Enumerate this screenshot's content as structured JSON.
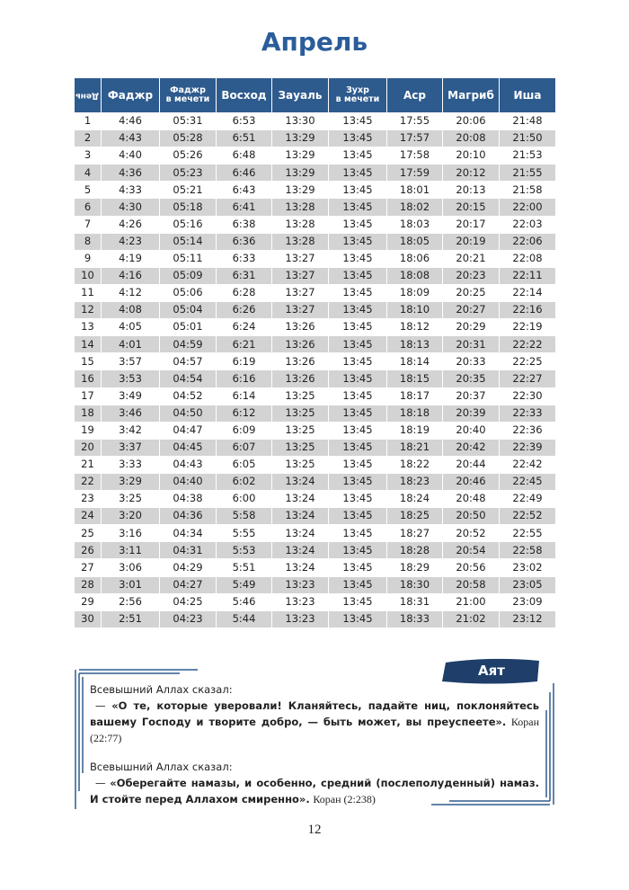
{
  "header": {
    "title": "Апрель"
  },
  "table": {
    "columns": [
      [
        "День"
      ],
      [
        "Фаджр"
      ],
      [
        "Фаджр",
        "в мечети"
      ],
      [
        "Восход"
      ],
      [
        "Зауаль"
      ],
      [
        "Зухр",
        "в мечети"
      ],
      [
        "Аср"
      ],
      [
        "Магриб"
      ],
      [
        "Иша"
      ]
    ],
    "rows": [
      [
        "1",
        "4:46",
        "05:31",
        "6:53",
        "13:30",
        "13:45",
        "17:55",
        "20:06",
        "21:48"
      ],
      [
        "2",
        "4:43",
        "05:28",
        "6:51",
        "13:29",
        "13:45",
        "17:57",
        "20:08",
        "21:50"
      ],
      [
        "3",
        "4:40",
        "05:26",
        "6:48",
        "13:29",
        "13:45",
        "17:58",
        "20:10",
        "21:53"
      ],
      [
        "4",
        "4:36",
        "05:23",
        "6:46",
        "13:29",
        "13:45",
        "17:59",
        "20:12",
        "21:55"
      ],
      [
        "5",
        "4:33",
        "05:21",
        "6:43",
        "13:29",
        "13:45",
        "18:01",
        "20:13",
        "21:58"
      ],
      [
        "6",
        "4:30",
        "05:18",
        "6:41",
        "13:28",
        "13:45",
        "18:02",
        "20:15",
        "22:00"
      ],
      [
        "7",
        "4:26",
        "05:16",
        "6:38",
        "13:28",
        "13:45",
        "18:03",
        "20:17",
        "22:03"
      ],
      [
        "8",
        "4:23",
        "05:14",
        "6:36",
        "13:28",
        "13:45",
        "18:05",
        "20:19",
        "22:06"
      ],
      [
        "9",
        "4:19",
        "05:11",
        "6:33",
        "13:27",
        "13:45",
        "18:06",
        "20:21",
        "22:08"
      ],
      [
        "10",
        "4:16",
        "05:09",
        "6:31",
        "13:27",
        "13:45",
        "18:08",
        "20:23",
        "22:11"
      ],
      [
        "11",
        "4:12",
        "05:06",
        "6:28",
        "13:27",
        "13:45",
        "18:09",
        "20:25",
        "22:14"
      ],
      [
        "12",
        "4:08",
        "05:04",
        "6:26",
        "13:27",
        "13:45",
        "18:10",
        "20:27",
        "22:16"
      ],
      [
        "13",
        "4:05",
        "05:01",
        "6:24",
        "13:26",
        "13:45",
        "18:12",
        "20:29",
        "22:19"
      ],
      [
        "14",
        "4:01",
        "04:59",
        "6:21",
        "13:26",
        "13:45",
        "18:13",
        "20:31",
        "22:22"
      ],
      [
        "15",
        "3:57",
        "04:57",
        "6:19",
        "13:26",
        "13:45",
        "18:14",
        "20:33",
        "22:25"
      ],
      [
        "16",
        "3:53",
        "04:54",
        "6:16",
        "13:26",
        "13:45",
        "18:15",
        "20:35",
        "22:27"
      ],
      [
        "17",
        "3:49",
        "04:52",
        "6:14",
        "13:25",
        "13:45",
        "18:17",
        "20:37",
        "22:30"
      ],
      [
        "18",
        "3:46",
        "04:50",
        "6:12",
        "13:25",
        "13:45",
        "18:18",
        "20:39",
        "22:33"
      ],
      [
        "19",
        "3:42",
        "04:47",
        "6:09",
        "13:25",
        "13:45",
        "18:19",
        "20:40",
        "22:36"
      ],
      [
        "20",
        "3:37",
        "04:45",
        "6:07",
        "13:25",
        "13:45",
        "18:21",
        "20:42",
        "22:39"
      ],
      [
        "21",
        "3:33",
        "04:43",
        "6:05",
        "13:25",
        "13:45",
        "18:22",
        "20:44",
        "22:42"
      ],
      [
        "22",
        "3:29",
        "04:40",
        "6:02",
        "13:24",
        "13:45",
        "18:23",
        "20:46",
        "22:45"
      ],
      [
        "23",
        "3:25",
        "04:38",
        "6:00",
        "13:24",
        "13:45",
        "18:24",
        "20:48",
        "22:49"
      ],
      [
        "24",
        "3:20",
        "04:36",
        "5:58",
        "13:24",
        "13:45",
        "18:25",
        "20:50",
        "22:52"
      ],
      [
        "25",
        "3:16",
        "04:34",
        "5:55",
        "13:24",
        "13:45",
        "18:27",
        "20:52",
        "22:55"
      ],
      [
        "26",
        "3:11",
        "04:31",
        "5:53",
        "13:24",
        "13:45",
        "18:28",
        "20:54",
        "22:58"
      ],
      [
        "27",
        "3:06",
        "04:29",
        "5:51",
        "13:24",
        "13:45",
        "18:29",
        "20:56",
        "23:02"
      ],
      [
        "28",
        "3:01",
        "04:27",
        "5:49",
        "13:23",
        "13:45",
        "18:30",
        "20:58",
        "23:05"
      ],
      [
        "29",
        "2:56",
        "04:25",
        "5:46",
        "13:23",
        "13:45",
        "18:31",
        "21:00",
        "23:09"
      ],
      [
        "30",
        "2:51",
        "04:23",
        "5:44",
        "13:23",
        "13:45",
        "18:33",
        "21:02",
        "23:12"
      ]
    ]
  },
  "ayat": {
    "badge": "Аят",
    "quotes": [
      {
        "intro": "Всевышний Аллах сказал:",
        "lead": "—",
        "text": "«О те, которые уверовали! Кланяйтесь, падайте ниц, поклоняйтесь вашему Господу и творите добро, — быть может, вы преуспеете».",
        "source": "Коран (22:77)"
      },
      {
        "intro": "Всевышний Аллах сказал:",
        "lead": "—",
        "text": "«Оберегайте намазы, и особенно, средний (послеполуденный) намаз. И стойте перед Аллахом смиренно».",
        "source": "Коран (2:238)"
      }
    ]
  },
  "footer": {
    "page": "12"
  }
}
